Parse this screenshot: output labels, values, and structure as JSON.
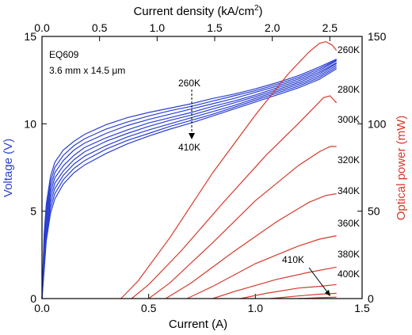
{
  "chart_data": {
    "type": "line",
    "annotations": {
      "device_id": "EQ609",
      "device_size": "3.6 mm x 14.5 μm",
      "voltage_arrow_start": "260K",
      "voltage_arrow_end": "410K",
      "power_arrow_label": "410K"
    },
    "axes": {
      "x_bottom": {
        "label": "Current (A)",
        "range": [
          0,
          1.5
        ],
        "ticks": [
          0,
          0.5,
          1.0,
          1.5
        ],
        "tick_labels": [
          "0.0",
          "0.5",
          "1.0",
          "1.5"
        ]
      },
      "x_top": {
        "label_main": "Current density (kA/cm",
        "label_sup": "2",
        "label_end": ")",
        "range": [
          0,
          2.78
        ],
        "ticks": [
          0,
          0.5,
          1.0,
          1.5,
          2.0,
          2.5
        ],
        "tick_labels": [
          "0.0",
          "0.5",
          "1.0",
          "1.5",
          "2.0",
          "2.5"
        ]
      },
      "y_left": {
        "label": "Voltage (V)",
        "color": "#2a3fd1",
        "range": [
          0,
          15
        ],
        "ticks": [
          0,
          5,
          10,
          15
        ],
        "tick_labels": [
          "0",
          "5",
          "10",
          "15"
        ]
      },
      "y_right": {
        "label": "Optical power (mW)",
        "color": "#d63a2a",
        "range": [
          0,
          150
        ],
        "ticks": [
          0,
          50,
          100,
          150
        ],
        "tick_labels": [
          "0",
          "50",
          "100",
          "150"
        ]
      }
    },
    "voltage_series": {
      "color": "#2a3fd1",
      "x": [
        0.0,
        0.01,
        0.02,
        0.04,
        0.06,
        0.1,
        0.15,
        0.2,
        0.3,
        0.4,
        0.5,
        0.6,
        0.7,
        0.8,
        0.9,
        1.0,
        1.1,
        1.2,
        1.3,
        1.38
      ],
      "series": [
        {
          "values": [
            0.0,
            3.7,
            5.4,
            7.0,
            7.8,
            8.5,
            9.0,
            9.4,
            9.95,
            10.35,
            10.65,
            10.9,
            11.15,
            11.45,
            11.7,
            12.0,
            12.35,
            12.75,
            13.25,
            13.7
          ]
        },
        {
          "values": [
            0.0,
            3.4,
            5.1,
            6.7,
            7.5,
            8.2,
            8.75,
            9.15,
            9.7,
            10.1,
            10.45,
            10.75,
            11.0,
            11.3,
            11.6,
            11.9,
            12.25,
            12.65,
            13.15,
            13.65
          ]
        },
        {
          "values": [
            0.0,
            3.1,
            4.8,
            6.4,
            7.2,
            7.9,
            8.5,
            8.9,
            9.45,
            9.9,
            10.25,
            10.55,
            10.85,
            11.15,
            11.45,
            11.8,
            12.15,
            12.55,
            13.05,
            13.6
          ]
        },
        {
          "values": [
            0.0,
            2.8,
            4.5,
            6.1,
            6.9,
            7.6,
            8.2,
            8.65,
            9.2,
            9.65,
            10.05,
            10.35,
            10.65,
            11.0,
            11.3,
            11.65,
            12.05,
            12.45,
            12.95,
            13.5
          ]
        },
        {
          "values": [
            0.0,
            2.5,
            4.2,
            5.8,
            6.6,
            7.3,
            7.95,
            8.4,
            9.0,
            9.45,
            9.85,
            10.2,
            10.5,
            10.85,
            11.2,
            11.55,
            11.95,
            12.35,
            12.85,
            13.45
          ]
        },
        {
          "values": [
            0.0,
            2.2,
            3.9,
            5.5,
            6.3,
            7.05,
            7.7,
            8.15,
            8.75,
            9.25,
            9.65,
            10.0,
            10.35,
            10.7,
            11.05,
            11.45,
            11.85,
            12.25,
            12.75,
            13.35
          ]
        },
        {
          "values": [
            0.0,
            1.9,
            3.6,
            5.2,
            6.0,
            6.8,
            7.45,
            7.9,
            8.55,
            9.05,
            9.45,
            9.85,
            10.2,
            10.55,
            10.95,
            11.35,
            11.75,
            12.15,
            12.65,
            13.25
          ]
        },
        {
          "values": [
            0.0,
            1.6,
            3.3,
            4.9,
            5.7,
            6.55,
            7.2,
            7.65,
            8.3,
            8.85,
            9.3,
            9.7,
            10.05,
            10.45,
            10.85,
            11.25,
            11.65,
            12.05,
            12.55,
            13.15
          ]
        }
      ]
    },
    "power_series": {
      "color": "#d63a2a",
      "series": [
        {
          "label": "260K",
          "x": [
            0.37,
            0.45,
            0.6,
            0.8,
            1.0,
            1.15,
            1.25,
            1.3,
            1.33,
            1.36,
            1.38
          ],
          "values": [
            0,
            10,
            35,
            72,
            105,
            128,
            141,
            146,
            147,
            145,
            142
          ]
        },
        {
          "label": "280K",
          "x": [
            0.42,
            0.5,
            0.65,
            0.85,
            1.05,
            1.2,
            1.28,
            1.32,
            1.35,
            1.38
          ],
          "values": [
            0,
            8,
            27,
            55,
            82,
            100,
            110,
            115,
            116,
            112
          ]
        },
        {
          "label": "300K",
          "x": [
            0.5,
            0.6,
            0.8,
            1.0,
            1.2,
            1.3,
            1.35,
            1.38
          ],
          "values": [
            0,
            9,
            32,
            56,
            76,
            84,
            87,
            87
          ]
        },
        {
          "label": "320K",
          "x": [
            0.58,
            0.7,
            0.9,
            1.1,
            1.25,
            1.33,
            1.38
          ],
          "values": [
            0,
            9,
            27,
            44,
            55,
            59,
            60
          ]
        },
        {
          "label": "340K",
          "x": [
            0.68,
            0.8,
            1.0,
            1.2,
            1.3,
            1.38
          ],
          "values": [
            0,
            7,
            20,
            30,
            34,
            36
          ]
        },
        {
          "label": "360K",
          "x": [
            0.8,
            0.9,
            1.1,
            1.25,
            1.38
          ],
          "values": [
            0,
            4,
            11,
            15,
            18
          ]
        },
        {
          "label": "380K",
          "x": [
            0.93,
            1.05,
            1.2,
            1.3,
            1.38
          ],
          "values": [
            0,
            3,
            6,
            7,
            8
          ]
        },
        {
          "label": "400K",
          "x": [
            1.07,
            1.2,
            1.3,
            1.38
          ],
          "values": [
            0,
            1.5,
            2.5,
            3
          ]
        },
        {
          "label": "410K",
          "x": [
            1.2,
            1.3,
            1.38
          ],
          "values": [
            0,
            0.5,
            0.8
          ]
        }
      ]
    }
  }
}
